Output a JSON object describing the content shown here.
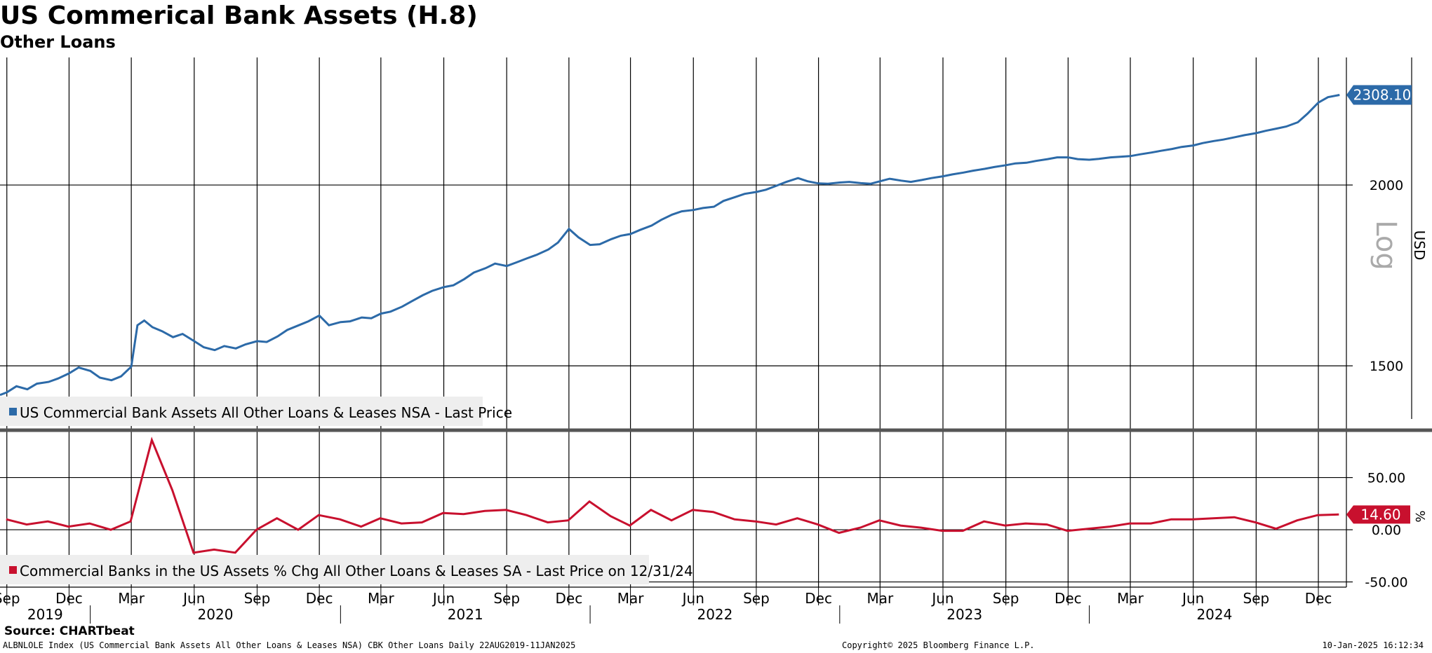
{
  "header": {
    "title": "US Commerical Bank Assets (H.8)",
    "subtitle": "Other Loans"
  },
  "footer": {
    "source": "Source: CHARTbeat",
    "ticker_info": "ALBNLOLE Index (US Commercial Bank Assets All Other Loans & Leases NSA) CBK Other Loans  Daily 22AUG2019-11JAN2025",
    "copyright": "Copyright© 2025 Bloomberg Finance L.P.",
    "timestamp": "10-Jan-2025 16:12:34"
  },
  "colors": {
    "series1": "#2c6aa8",
    "series2": "#c8102e",
    "grid": "#000000",
    "legend_bg": "#eeeeee"
  },
  "chart_data": [
    {
      "type": "line",
      "panel": "upper",
      "scale": "log",
      "ylabel": "USD",
      "scale_label": "Log",
      "ylim": [
        1360,
        2450
      ],
      "yticks": [
        "2000",
        "1500"
      ],
      "last_value_label": "2308.10",
      "legend_position": "bottom-left",
      "grid": true,
      "series": [
        {
          "name": "US Commercial Bank Assets All Other Loans & Leases NSA - Last Price",
          "x": [
            "2019-08-22",
            "2019-09-01",
            "2019-09-15",
            "2019-10-01",
            "2019-10-15",
            "2019-11-01",
            "2019-11-15",
            "2019-12-01",
            "2019-12-15",
            "2020-01-01",
            "2020-01-15",
            "2020-02-01",
            "2020-02-15",
            "2020-03-01",
            "2020-03-10",
            "2020-03-20",
            "2020-04-01",
            "2020-04-15",
            "2020-05-01",
            "2020-05-15",
            "2020-06-01",
            "2020-06-15",
            "2020-07-01",
            "2020-07-15",
            "2020-08-01",
            "2020-08-15",
            "2020-09-01",
            "2020-09-15",
            "2020-10-01",
            "2020-10-15",
            "2020-11-01",
            "2020-11-15",
            "2020-12-01",
            "2020-12-15",
            "2021-01-01",
            "2021-01-15",
            "2021-02-01",
            "2021-02-15",
            "2021-03-01",
            "2021-03-15",
            "2021-04-01",
            "2021-04-15",
            "2021-05-01",
            "2021-05-15",
            "2021-06-01",
            "2021-06-15",
            "2021-07-01",
            "2021-07-15",
            "2021-08-01",
            "2021-08-15",
            "2021-09-01",
            "2021-09-15",
            "2021-10-01",
            "2021-10-15",
            "2021-11-01",
            "2021-11-15",
            "2021-12-01",
            "2021-12-15",
            "2022-01-01",
            "2022-01-15",
            "2022-02-01",
            "2022-02-15",
            "2022-03-01",
            "2022-03-15",
            "2022-04-01",
            "2022-04-15",
            "2022-05-01",
            "2022-05-15",
            "2022-06-01",
            "2022-06-15",
            "2022-07-01",
            "2022-07-15",
            "2022-08-01",
            "2022-08-15",
            "2022-09-01",
            "2022-09-15",
            "2022-10-01",
            "2022-10-15",
            "2022-11-01",
            "2022-11-15",
            "2022-12-01",
            "2022-12-15",
            "2023-01-01",
            "2023-01-15",
            "2023-02-01",
            "2023-02-15",
            "2023-03-01",
            "2023-03-15",
            "2023-04-01",
            "2023-04-15",
            "2023-05-01",
            "2023-05-15",
            "2023-06-01",
            "2023-06-15",
            "2023-07-01",
            "2023-07-15",
            "2023-08-01",
            "2023-08-15",
            "2023-09-01",
            "2023-09-15",
            "2023-10-01",
            "2023-10-15",
            "2023-11-01",
            "2023-11-15",
            "2023-12-01",
            "2023-12-15",
            "2024-01-01",
            "2024-01-15",
            "2024-02-01",
            "2024-02-15",
            "2024-03-01",
            "2024-03-15",
            "2024-04-01",
            "2024-04-15",
            "2024-05-01",
            "2024-05-15",
            "2024-06-01",
            "2024-06-15",
            "2024-07-01",
            "2024-07-15",
            "2024-08-01",
            "2024-08-15",
            "2024-09-01",
            "2024-09-15",
            "2024-10-01",
            "2024-10-15",
            "2024-11-01",
            "2024-11-15",
            "2024-12-01",
            "2024-12-15",
            "2025-01-01"
          ],
          "values": [
            1432,
            1438,
            1452,
            1445,
            1458,
            1462,
            1470,
            1482,
            1496,
            1488,
            1472,
            1466,
            1475,
            1498,
            1600,
            1612,
            1595,
            1585,
            1570,
            1578,
            1560,
            1545,
            1538,
            1548,
            1542,
            1552,
            1560,
            1558,
            1572,
            1588,
            1600,
            1610,
            1625,
            1600,
            1608,
            1610,
            1620,
            1618,
            1630,
            1635,
            1648,
            1662,
            1678,
            1690,
            1700,
            1705,
            1722,
            1740,
            1752,
            1765,
            1758,
            1768,
            1780,
            1790,
            1805,
            1825,
            1865,
            1840,
            1818,
            1820,
            1835,
            1845,
            1850,
            1862,
            1875,
            1892,
            1908,
            1918,
            1922,
            1928,
            1932,
            1950,
            1962,
            1972,
            1978,
            1985,
            1998,
            2010,
            2022,
            2012,
            2005,
            2004,
            2008,
            2010,
            2006,
            2004,
            2012,
            2020,
            2014,
            2010,
            2016,
            2022,
            2028,
            2034,
            2040,
            2046,
            2052,
            2058,
            2064,
            2070,
            2072,
            2078,
            2084,
            2090,
            2090,
            2084,
            2082,
            2085,
            2090,
            2092,
            2094,
            2100,
            2106,
            2112,
            2118,
            2125,
            2130,
            2138,
            2145,
            2150,
            2158,
            2165,
            2172,
            2180,
            2188,
            2195,
            2210,
            2240,
            2280,
            2300,
            2308.1
          ]
        }
      ]
    },
    {
      "type": "line",
      "panel": "lower",
      "ylabel": "%",
      "ylim": [
        -55,
        90
      ],
      "yticks": [
        "50.00",
        "0.00",
        "-50.00"
      ],
      "last_value_label": "14.60",
      "legend_position": "bottom-left",
      "grid": true,
      "series": [
        {
          "name": "Commercial Banks in the US Assets % Chg All Other Loans & Leases SA - Last Price on 12/31/24",
          "x": [
            "2019-08-31",
            "2019-09-30",
            "2019-10-31",
            "2019-11-30",
            "2019-12-31",
            "2020-01-31",
            "2020-02-29",
            "2020-03-31",
            "2020-04-30",
            "2020-05-31",
            "2020-06-30",
            "2020-07-31",
            "2020-08-31",
            "2020-09-30",
            "2020-10-31",
            "2020-11-30",
            "2020-12-31",
            "2021-01-31",
            "2021-02-28",
            "2021-03-31",
            "2021-04-30",
            "2021-05-31",
            "2021-06-30",
            "2021-07-31",
            "2021-08-31",
            "2021-09-30",
            "2021-10-31",
            "2021-11-30",
            "2021-12-31",
            "2022-01-31",
            "2022-02-28",
            "2022-03-31",
            "2022-04-30",
            "2022-05-31",
            "2022-06-30",
            "2022-07-31",
            "2022-08-31",
            "2022-09-30",
            "2022-10-31",
            "2022-11-30",
            "2022-12-31",
            "2023-01-31",
            "2023-02-28",
            "2023-03-31",
            "2023-04-30",
            "2023-05-31",
            "2023-06-30",
            "2023-07-31",
            "2023-08-31",
            "2023-09-30",
            "2023-10-31",
            "2023-11-30",
            "2023-12-31",
            "2024-01-31",
            "2024-02-29",
            "2024-03-31",
            "2024-04-30",
            "2024-05-31",
            "2024-06-30",
            "2024-07-31",
            "2024-08-31",
            "2024-09-30",
            "2024-10-31",
            "2024-11-30",
            "2024-12-31"
          ],
          "values": [
            10,
            5,
            8,
            3,
            6,
            0,
            8,
            86,
            38,
            -22,
            -19,
            -22,
            0,
            11,
            0,
            14,
            10,
            3,
            11,
            6,
            7,
            16,
            15,
            18,
            19,
            14,
            7,
            9,
            27,
            13,
            4,
            19,
            9,
            19,
            17,
            10,
            8,
            5,
            11,
            5,
            -3,
            2,
            9,
            4,
            2,
            -1,
            -1,
            8,
            4,
            6,
            5,
            -1,
            1,
            3,
            6,
            6,
            10,
            10,
            11,
            12,
            7,
            1,
            9,
            14,
            14.6
          ]
        }
      ]
    }
  ],
  "x_axis": {
    "month_labels": [
      "Sep",
      "Dec",
      "Mar",
      "Jun",
      "Sep",
      "Dec",
      "Mar",
      "Jun",
      "Sep",
      "Dec",
      "Mar",
      "Jun",
      "Sep",
      "Dec",
      "Mar",
      "Jun",
      "Sep",
      "Dec",
      "Mar",
      "Jun",
      "Sep",
      "Dec"
    ],
    "year_labels": [
      "2019",
      "2020",
      "2021",
      "2022",
      "2023",
      "2024"
    ]
  }
}
